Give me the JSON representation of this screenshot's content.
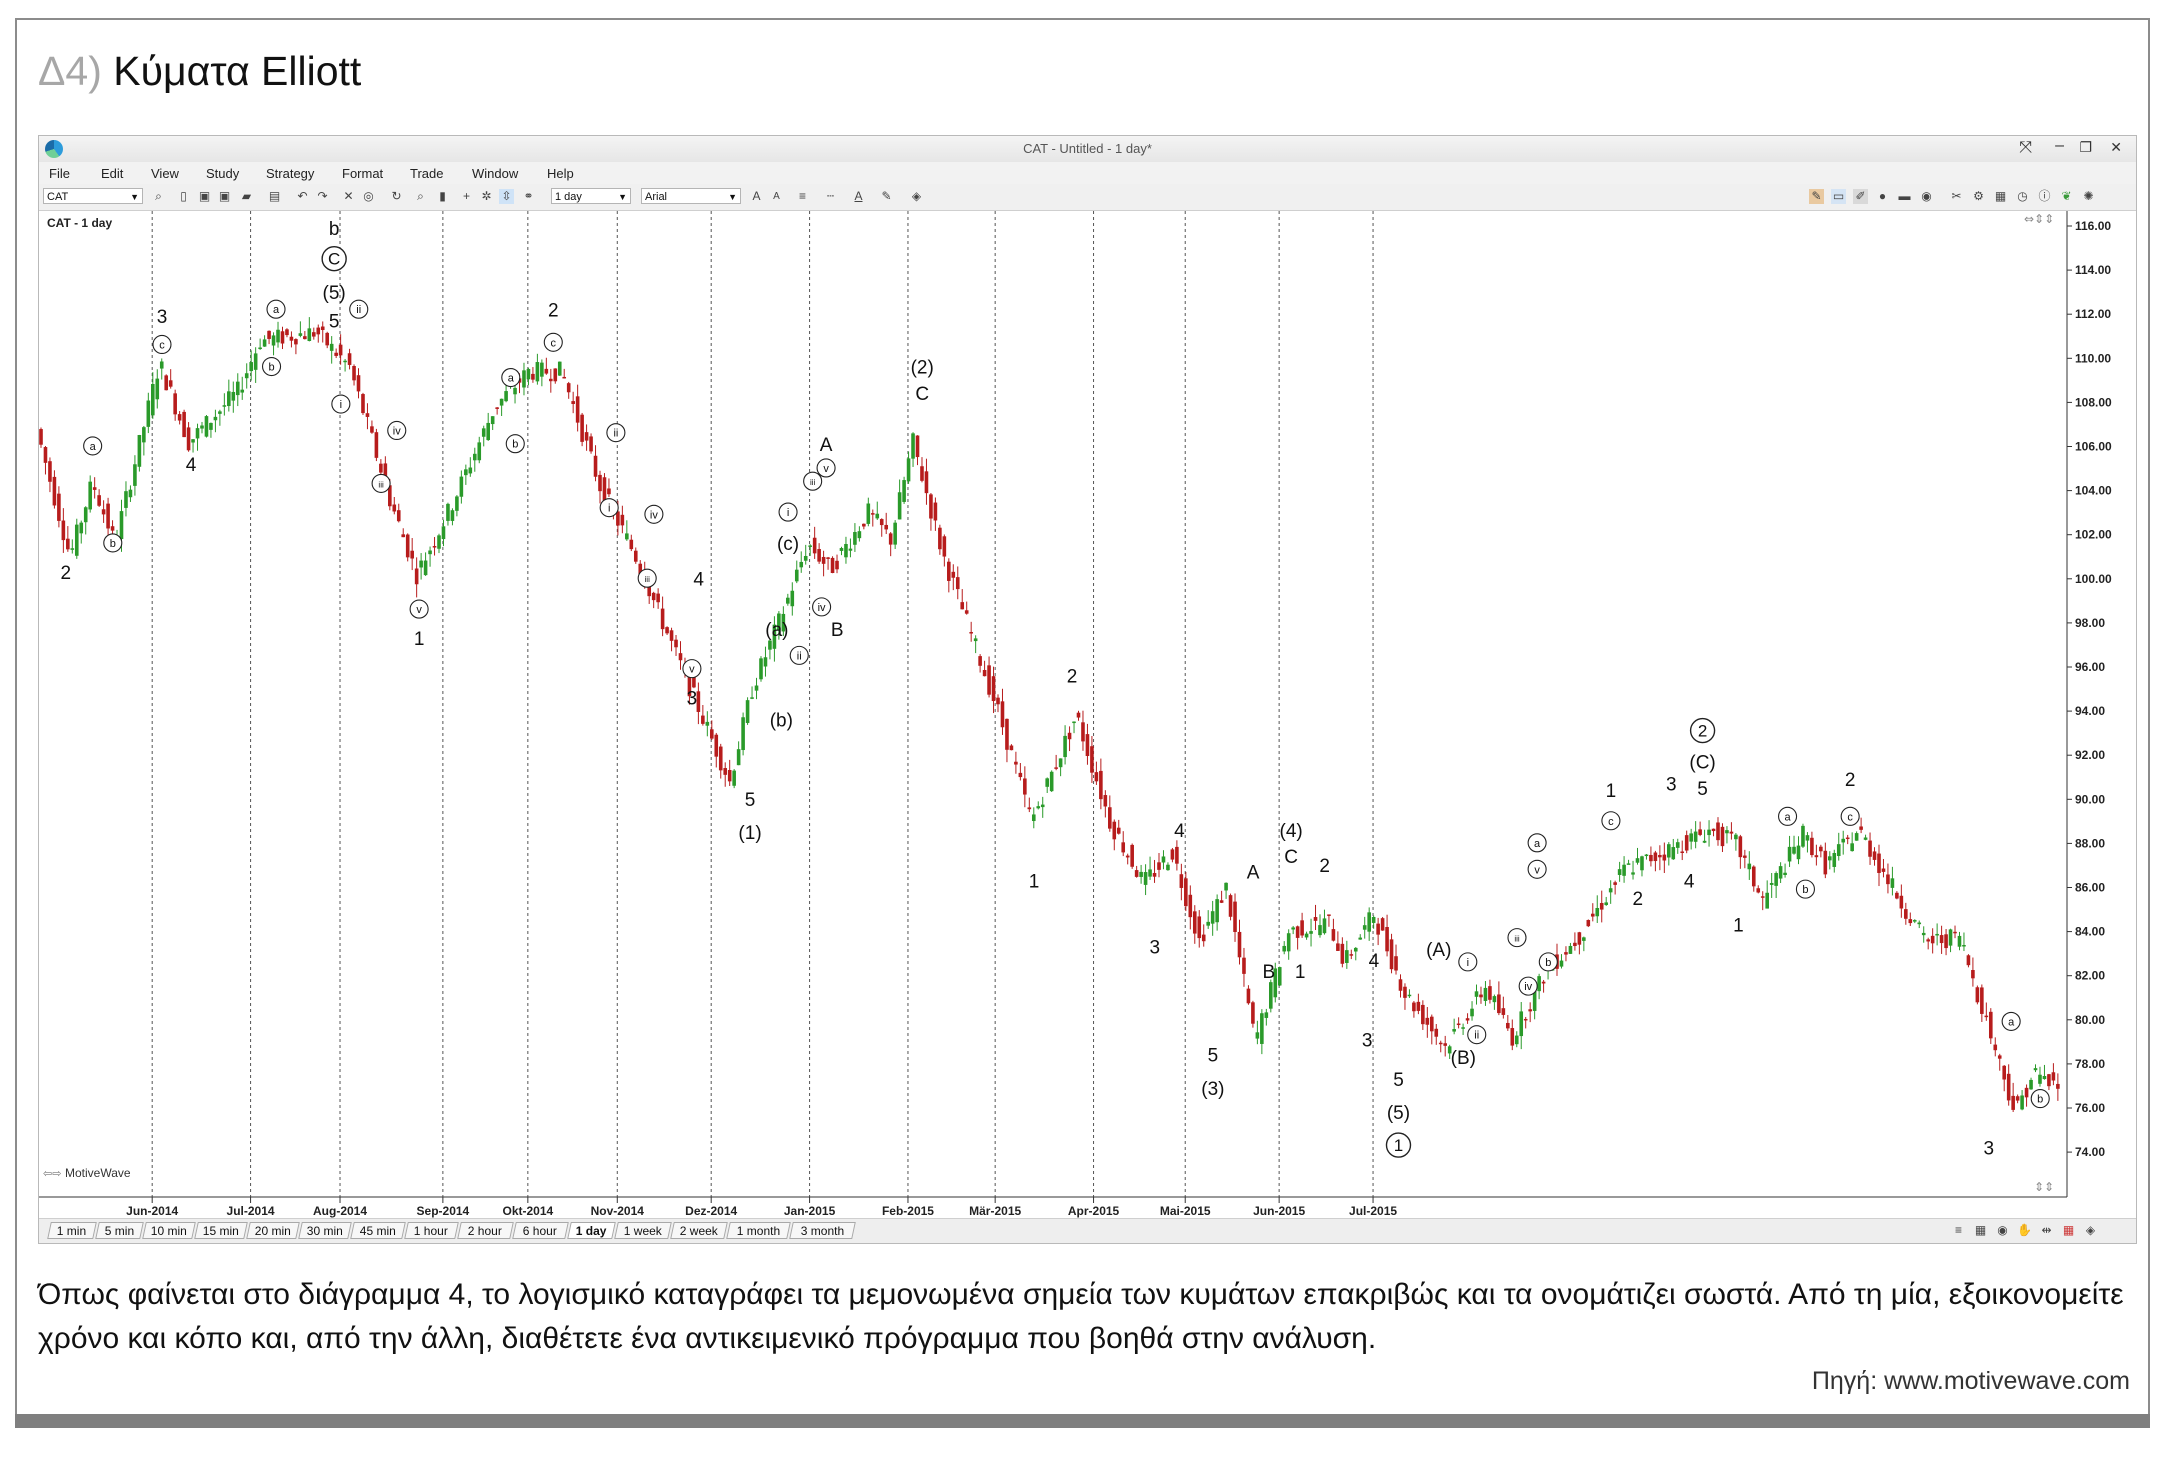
{
  "page": {
    "prefix": "Δ4)",
    "title": "Κύματα Elliott",
    "caption": "Όπως φαίνεται στο διάγραμμα 4, το λογισμικό καταγράφει τα μεμονωμένα σημεία των κυμάτων επακριβώς και τα ονομάτιζει σωστά. Από τη μία, εξοικονομείτε χρόνο και κόπο και, από την άλλη, διαθέτετε ένα αντικειμενικό πρόγραμμα που βοηθά στην ανάλυση.",
    "source": "Πηγή: www.motivewave.com"
  },
  "app": {
    "window_title": "CAT - Untitled - 1 day*",
    "menu": [
      "File",
      "Edit",
      "View",
      "Study",
      "Strategy",
      "Format",
      "Trade",
      "Window",
      "Help"
    ],
    "symbol": "CAT",
    "interval": "1 day",
    "font": "Arial",
    "chart_label": "CAT - 1 day",
    "watermark": "MotiveWave",
    "tabs": [
      "1 min",
      "5 min",
      "10 min",
      "15 min",
      "20 min",
      "30 min",
      "45 min",
      "1 hour",
      "2 hour",
      "6 hour",
      "1 day",
      "1 week",
      "2 week",
      "1 month",
      "3 month"
    ],
    "active_tab": "1 day",
    "colors": {
      "up": "#2a9a2a",
      "down": "#b71c1c",
      "accent": "#2d9cdb"
    }
  },
  "chart_data": {
    "type": "candlestick",
    "title": "CAT - 1 day",
    "ylim": [
      73,
      117
    ],
    "y_ticks": [
      "116.00",
      "114.00",
      "112.00",
      "110.00",
      "108.00",
      "106.00",
      "104.00",
      "102.00",
      "100.00",
      "98.00",
      "96.00",
      "94.00",
      "92.00",
      "90.00",
      "88.00",
      "86.00",
      "84.00",
      "82.00",
      "80.00",
      "78.00",
      "76.00",
      "74.00"
    ],
    "x_labels": [
      "Jun-2014",
      "Jul-2014",
      "Aug-2014",
      "Sep-2014",
      "Okt-2014",
      "Nov-2014",
      "Dez-2014",
      "Jan-2015",
      "Feb-2015",
      "Mär-2015",
      "Apr-2015",
      "Mai-2015",
      "Jun-2015",
      "Jul-2015"
    ],
    "price_path": [
      {
        "d": 0,
        "p": 106.8
      },
      {
        "d": 15,
        "p": 101.0
      },
      {
        "d": 25,
        "p": 104.4
      },
      {
        "d": 35,
        "p": 101.6
      },
      {
        "d": 55,
        "p": 109.8
      },
      {
        "d": 68,
        "p": 106.2
      },
      {
        "d": 90,
        "p": 108.5
      },
      {
        "d": 100,
        "p": 110.8
      },
      {
        "d": 125,
        "p": 111.2
      },
      {
        "d": 140,
        "p": 109.6
      },
      {
        "d": 150,
        "p": 106.3
      },
      {
        "d": 158,
        "p": 103.6
      },
      {
        "d": 170,
        "p": 100.2
      },
      {
        "d": 185,
        "p": 103.2
      },
      {
        "d": 205,
        "p": 107.8
      },
      {
        "d": 220,
        "p": 109.4
      },
      {
        "d": 235,
        "p": 109.4
      },
      {
        "d": 252,
        "p": 104.2
      },
      {
        "d": 268,
        "p": 101.0
      },
      {
        "d": 285,
        "p": 96.8
      },
      {
        "d": 310,
        "p": 90.8
      },
      {
        "d": 320,
        "p": 95.0
      },
      {
        "d": 335,
        "p": 98.8
      },
      {
        "d": 345,
        "p": 101.6
      },
      {
        "d": 355,
        "p": 100.4
      },
      {
        "d": 372,
        "p": 103.0
      },
      {
        "d": 382,
        "p": 101.8
      },
      {
        "d": 392,
        "p": 106.2
      },
      {
        "d": 405,
        "p": 101.2
      },
      {
        "d": 430,
        "p": 94.0
      },
      {
        "d": 445,
        "p": 89.0
      },
      {
        "d": 465,
        "p": 93.8
      },
      {
        "d": 480,
        "p": 89.0
      },
      {
        "d": 495,
        "p": 86.2
      },
      {
        "d": 508,
        "p": 87.6
      },
      {
        "d": 520,
        "p": 83.6
      },
      {
        "d": 532,
        "p": 86.0
      },
      {
        "d": 545,
        "p": 79.0
      },
      {
        "d": 560,
        "p": 84.0
      },
      {
        "d": 578,
        "p": 84.4
      },
      {
        "d": 585,
        "p": 82.6
      },
      {
        "d": 598,
        "p": 84.8
      },
      {
        "d": 612,
        "p": 81.2
      },
      {
        "d": 630,
        "p": 78.8
      },
      {
        "d": 648,
        "p": 81.5
      },
      {
        "d": 660,
        "p": 79.2
      },
      {
        "d": 675,
        "p": 82.2
      },
      {
        "d": 690,
        "p": 83.8
      },
      {
        "d": 710,
        "p": 86.8
      },
      {
        "d": 728,
        "p": 87.6
      },
      {
        "d": 748,
        "p": 88.6
      },
      {
        "d": 760,
        "p": 88.0
      },
      {
        "d": 772,
        "p": 85.4
      },
      {
        "d": 790,
        "p": 88.4
      },
      {
        "d": 800,
        "p": 87.0
      },
      {
        "d": 815,
        "p": 88.6
      },
      {
        "d": 830,
        "p": 86.0
      },
      {
        "d": 845,
        "p": 83.5
      },
      {
        "d": 860,
        "p": 83.8
      },
      {
        "d": 875,
        "p": 79.0
      },
      {
        "d": 885,
        "p": 75.8
      },
      {
        "d": 893,
        "p": 77.6
      },
      {
        "d": 903,
        "p": 77.0
      }
    ],
    "wave_labels": [
      {
        "t": "2",
        "d": 12,
        "p": 100.0
      },
      {
        "t": "a",
        "d": 24,
        "p": 105.8,
        "c": 1
      },
      {
        "t": "b",
        "d": 33,
        "p": 101.4,
        "c": 1
      },
      {
        "t": "3",
        "d": 55,
        "p": 111.6
      },
      {
        "t": "c",
        "d": 55,
        "p": 110.4,
        "c": 1
      },
      {
        "t": "4",
        "d": 68,
        "p": 104.9
      },
      {
        "t": "b",
        "d": 104,
        "p": 109.4,
        "c": 1
      },
      {
        "t": "a",
        "d": 106,
        "p": 112.0,
        "c": 1
      },
      {
        "t": "b",
        "d": 132,
        "p": 115.6
      },
      {
        "t": "C",
        "d": 132,
        "p": 114.2,
        "c": 2
      },
      {
        "t": "(5)",
        "d": 132,
        "p": 112.7
      },
      {
        "t": "5",
        "d": 132,
        "p": 111.4
      },
      {
        "t": "ii",
        "d": 143,
        "p": 112.0,
        "c": 1
      },
      {
        "t": "i",
        "d": 135,
        "p": 107.7,
        "c": 1
      },
      {
        "t": "iv",
        "d": 160,
        "p": 106.5,
        "c": 1
      },
      {
        "t": "iii",
        "d": 153,
        "p": 104.1,
        "c": 1
      },
      {
        "t": "v",
        "d": 170,
        "p": 98.4,
        "c": 1
      },
      {
        "t": "1",
        "d": 170,
        "p": 97.0
      },
      {
        "t": "a",
        "d": 211,
        "p": 108.9,
        "c": 1
      },
      {
        "t": "b",
        "d": 213,
        "p": 105.9,
        "c": 1
      },
      {
        "t": "2",
        "d": 230,
        "p": 111.9
      },
      {
        "t": "c",
        "d": 230,
        "p": 110.5,
        "c": 1
      },
      {
        "t": "ii",
        "d": 258,
        "p": 106.4,
        "c": 1
      },
      {
        "t": "i",
        "d": 255,
        "p": 103.0,
        "c": 1
      },
      {
        "t": "iv",
        "d": 275,
        "p": 102.7,
        "c": 1
      },
      {
        "t": "iii",
        "d": 272,
        "p": 99.8,
        "c": 1
      },
      {
        "t": "4",
        "d": 295,
        "p": 99.7
      },
      {
        "t": "v",
        "d": 292,
        "p": 95.7,
        "c": 1
      },
      {
        "t": "3",
        "d": 292,
        "p": 94.3
      },
      {
        "t": "(a)",
        "d": 330,
        "p": 97.4
      },
      {
        "t": "(b)",
        "d": 332,
        "p": 93.3
      },
      {
        "t": "ii",
        "d": 340,
        "p": 96.3,
        "c": 1
      },
      {
        "t": "(c)",
        "d": 335,
        "p": 101.3
      },
      {
        "t": "i",
        "d": 335,
        "p": 102.8,
        "c": 1
      },
      {
        "t": "iii",
        "d": 346,
        "p": 104.2,
        "c": 1
      },
      {
        "t": "v",
        "d": 352,
        "p": 104.8,
        "c": 1
      },
      {
        "t": "A",
        "d": 352,
        "p": 105.8
      },
      {
        "t": "iv",
        "d": 350,
        "p": 98.5,
        "c": 1
      },
      {
        "t": "B",
        "d": 357,
        "p": 97.4
      },
      {
        "t": "5",
        "d": 318,
        "p": 89.7
      },
      {
        "t": "(1)",
        "d": 318,
        "p": 88.2
      },
      {
        "t": "(2)",
        "d": 395,
        "p": 109.3
      },
      {
        "t": "C",
        "d": 395,
        "p": 108.1
      },
      {
        "t": "2",
        "d": 462,
        "p": 95.3
      },
      {
        "t": "1",
        "d": 445,
        "p": 86.0
      },
      {
        "t": "4",
        "d": 510,
        "p": 88.3
      },
      {
        "t": "3",
        "d": 499,
        "p": 83.0
      },
      {
        "t": "5",
        "d": 525,
        "p": 78.1
      },
      {
        "t": "(3)",
        "d": 525,
        "p": 76.6
      },
      {
        "t": "A",
        "d": 543,
        "p": 86.4
      },
      {
        "t": "(4)",
        "d": 560,
        "p": 88.3
      },
      {
        "t": "C",
        "d": 560,
        "p": 87.1
      },
      {
        "t": "2",
        "d": 575,
        "p": 86.7
      },
      {
        "t": "B",
        "d": 550,
        "p": 81.9
      },
      {
        "t": "1",
        "d": 564,
        "p": 81.9
      },
      {
        "t": "4",
        "d": 597,
        "p": 82.4
      },
      {
        "t": "3",
        "d": 594,
        "p": 78.8
      },
      {
        "t": "5",
        "d": 608,
        "p": 77.0
      },
      {
        "t": "(5)",
        "d": 608,
        "p": 75.5
      },
      {
        "t": "1",
        "d": 608,
        "p": 74.0,
        "c": 2
      },
      {
        "t": "(A)",
        "d": 626,
        "p": 82.9
      },
      {
        "t": "i",
        "d": 639,
        "p": 82.4,
        "c": 1
      },
      {
        "t": "(B)",
        "d": 637,
        "p": 78.0
      },
      {
        "t": "ii",
        "d": 643,
        "p": 79.1,
        "c": 1
      },
      {
        "t": "iii",
        "d": 661,
        "p": 83.5,
        "c": 1
      },
      {
        "t": "iv",
        "d": 666,
        "p": 81.3,
        "c": 1
      },
      {
        "t": "b",
        "d": 675,
        "p": 82.4,
        "c": 1
      },
      {
        "t": "a",
        "d": 670,
        "p": 87.8,
        "c": 1
      },
      {
        "t": "v",
        "d": 670,
        "p": 86.6,
        "c": 1
      },
      {
        "t": "1",
        "d": 703,
        "p": 90.1
      },
      {
        "t": "c",
        "d": 703,
        "p": 88.8,
        "c": 1
      },
      {
        "t": "2",
        "d": 715,
        "p": 85.2
      },
      {
        "t": "3",
        "d": 730,
        "p": 90.4
      },
      {
        "t": "4",
        "d": 738,
        "p": 86.0
      },
      {
        "t": "2",
        "d": 744,
        "p": 92.8,
        "c": 2
      },
      {
        "t": "(C)",
        "d": 744,
        "p": 91.4
      },
      {
        "t": "5",
        "d": 744,
        "p": 90.2
      },
      {
        "t": "1",
        "d": 760,
        "p": 84.0
      },
      {
        "t": "a",
        "d": 782,
        "p": 89.0,
        "c": 1
      },
      {
        "t": "b",
        "d": 790,
        "p": 85.7,
        "c": 1
      },
      {
        "t": "2",
        "d": 810,
        "p": 90.6
      },
      {
        "t": "c",
        "d": 810,
        "p": 89.0,
        "c": 1
      },
      {
        "t": "a",
        "d": 882,
        "p": 79.7,
        "c": 1
      },
      {
        "t": "b",
        "d": 895,
        "p": 76.2,
        "c": 1
      },
      {
        "t": "3",
        "d": 872,
        "p": 73.9
      }
    ]
  }
}
